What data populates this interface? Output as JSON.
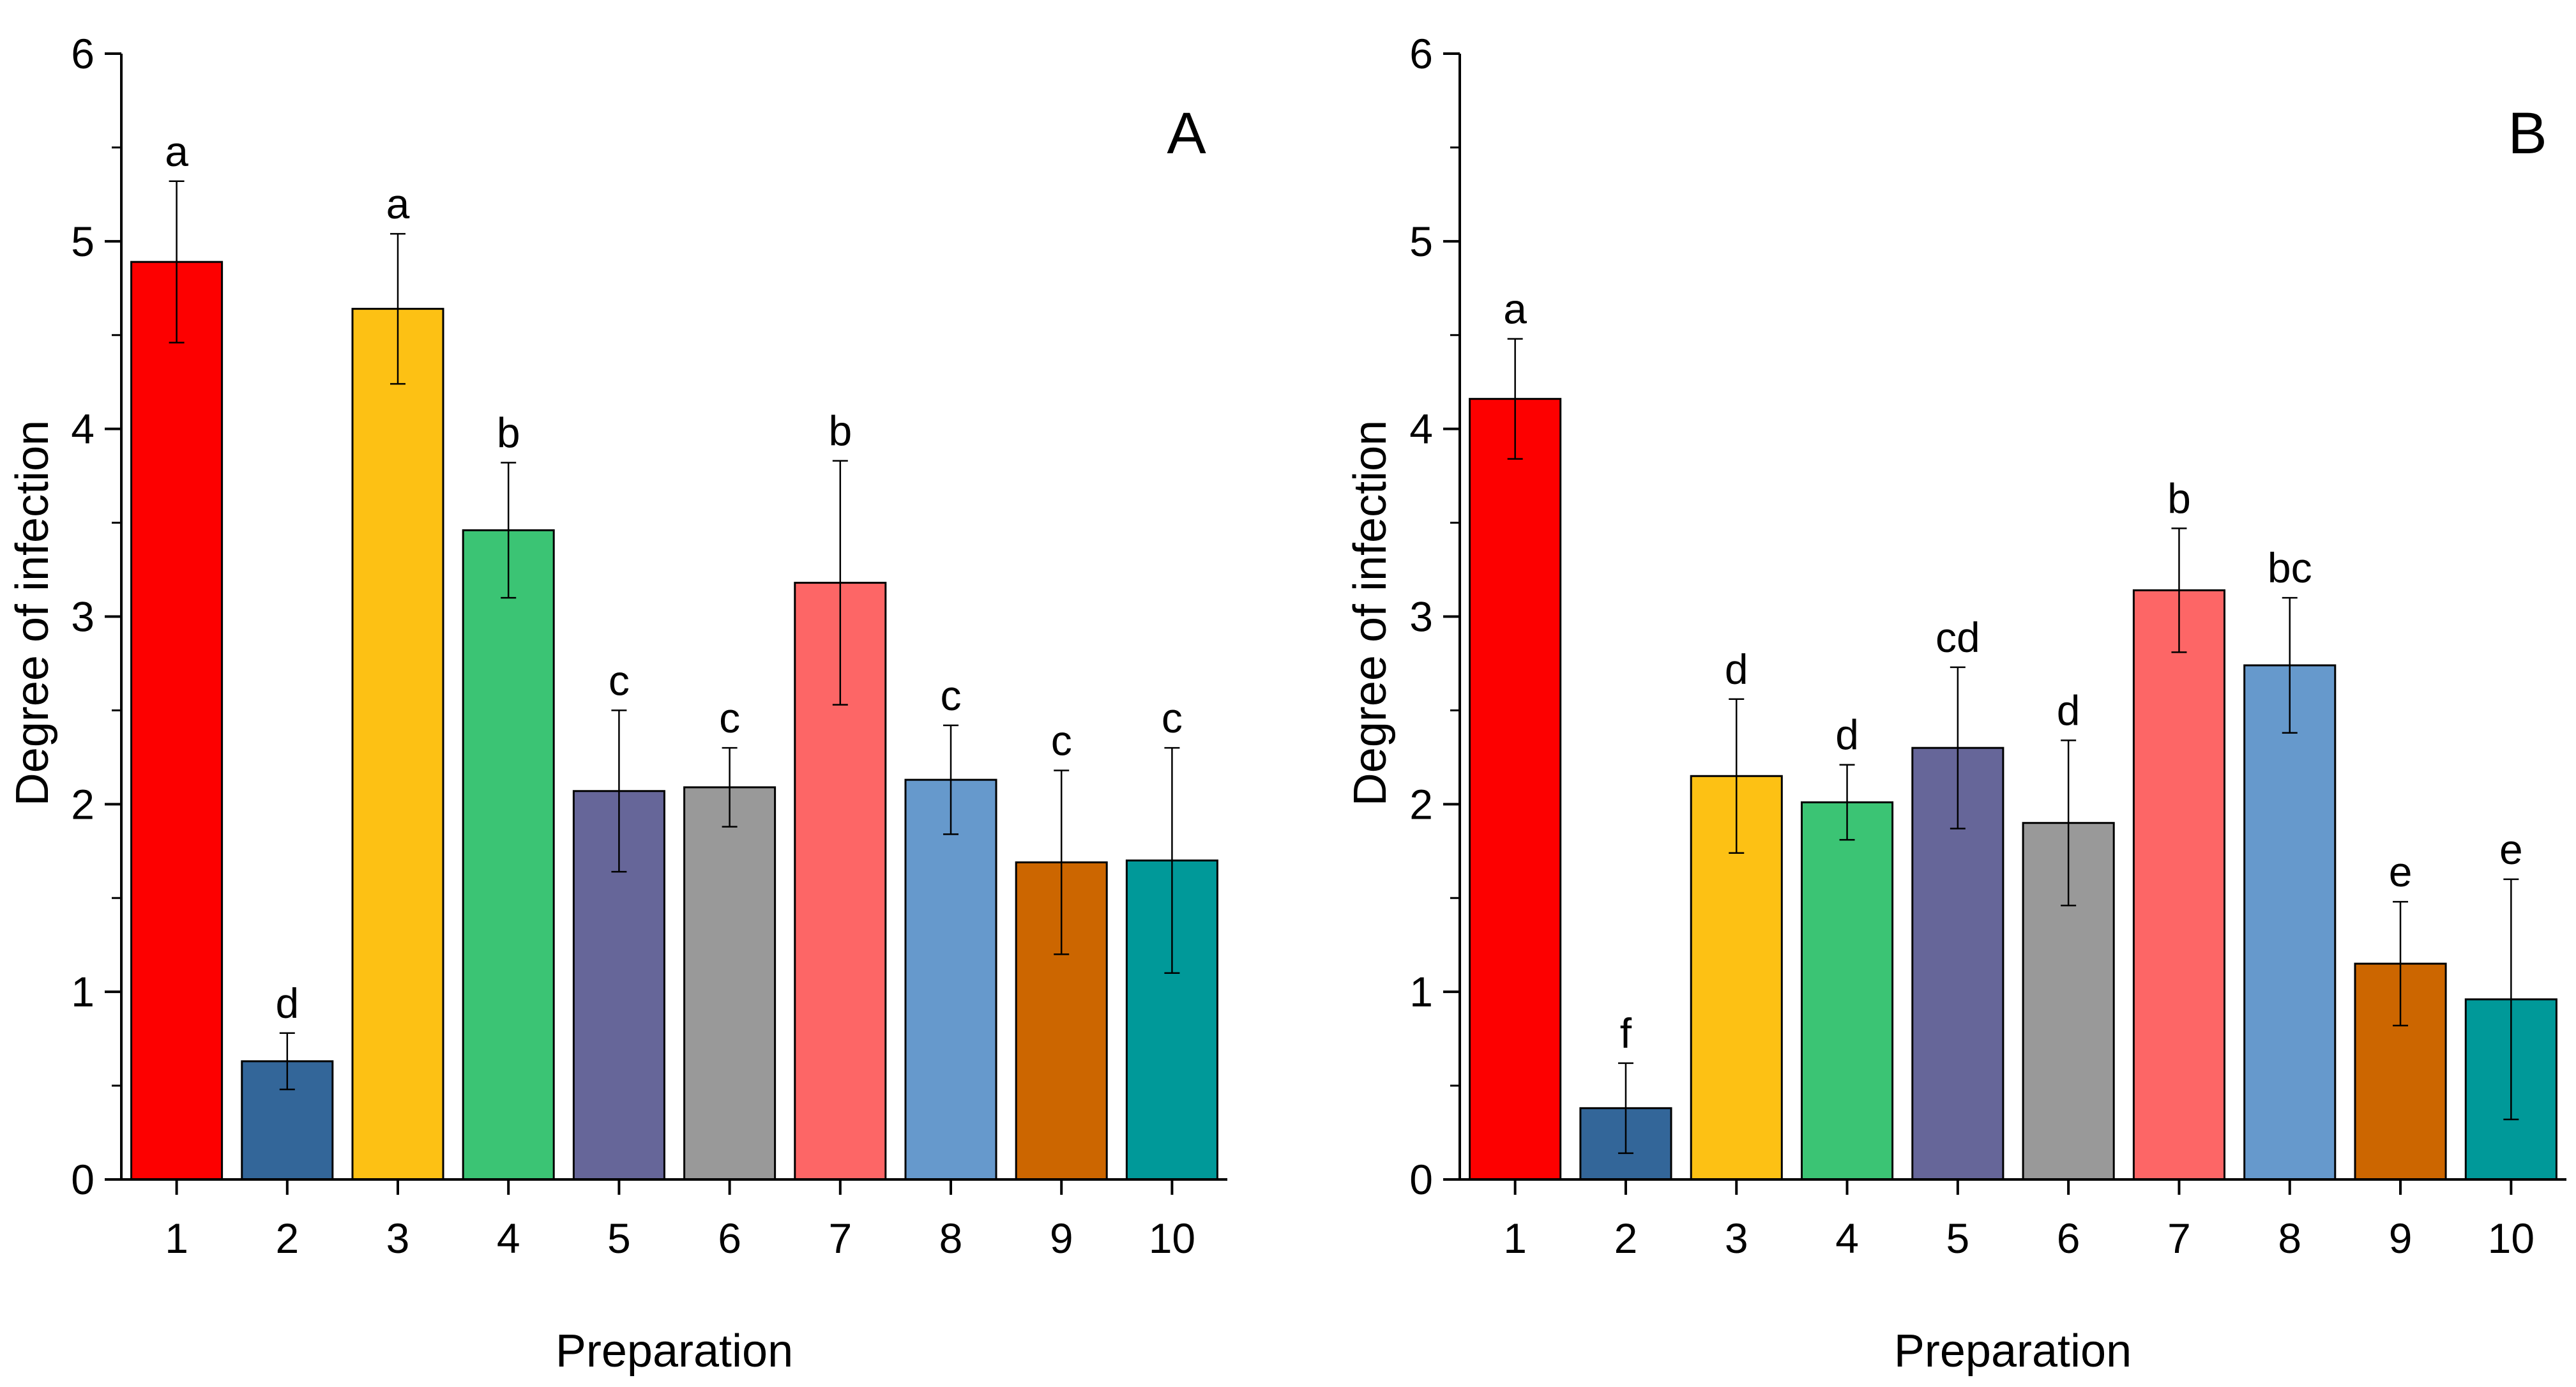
{
  "chart_data": [
    {
      "type": "bar",
      "panel_label": "A",
      "xlabel": "Preparation",
      "ylabel": "Degree of infection",
      "ylim": [
        0,
        6
      ],
      "yticks": [
        "0",
        "1",
        "2",
        "3",
        "4",
        "5",
        "6"
      ],
      "categories": [
        "1",
        "2",
        "3",
        "4",
        "5",
        "6",
        "7",
        "8",
        "9",
        "10"
      ],
      "values": [
        4.89,
        0.63,
        4.64,
        3.46,
        2.07,
        2.09,
        3.18,
        2.13,
        1.69,
        1.7
      ],
      "errors": [
        0.43,
        0.15,
        0.4,
        0.36,
        0.43,
        0.21,
        0.65,
        0.29,
        0.49,
        0.6
      ],
      "letters": [
        "a",
        "d",
        "a",
        "b",
        "c",
        "c",
        "b",
        "c",
        "c",
        "c"
      ],
      "colors": [
        "#fd0000",
        "#336699",
        "#fdc114",
        "#3bc474",
        "#666699",
        "#999999",
        "#fd6666",
        "#6699cc",
        "#cc6600",
        "#009999"
      ]
    },
    {
      "type": "bar",
      "panel_label": "B",
      "xlabel": "Preparation",
      "ylabel": "Degree of infection",
      "ylim": [
        0,
        6
      ],
      "yticks": [
        "0",
        "1",
        "2",
        "3",
        "4",
        "5",
        "6"
      ],
      "categories": [
        "1",
        "2",
        "3",
        "4",
        "5",
        "6",
        "7",
        "8",
        "9",
        "10"
      ],
      "values": [
        4.16,
        0.38,
        2.15,
        2.01,
        2.3,
        1.9,
        3.14,
        2.74,
        1.15,
        0.96
      ],
      "errors": [
        0.32,
        0.24,
        0.41,
        0.2,
        0.43,
        0.44,
        0.33,
        0.36,
        0.33,
        0.64
      ],
      "letters": [
        "a",
        "f",
        "d",
        "d",
        "cd",
        "d",
        "b",
        "bc",
        "e",
        "e"
      ],
      "colors": [
        "#fd0000",
        "#336699",
        "#fdc114",
        "#3bc474",
        "#666699",
        "#999999",
        "#fd6666",
        "#6699cc",
        "#cc6600",
        "#009999"
      ]
    }
  ]
}
